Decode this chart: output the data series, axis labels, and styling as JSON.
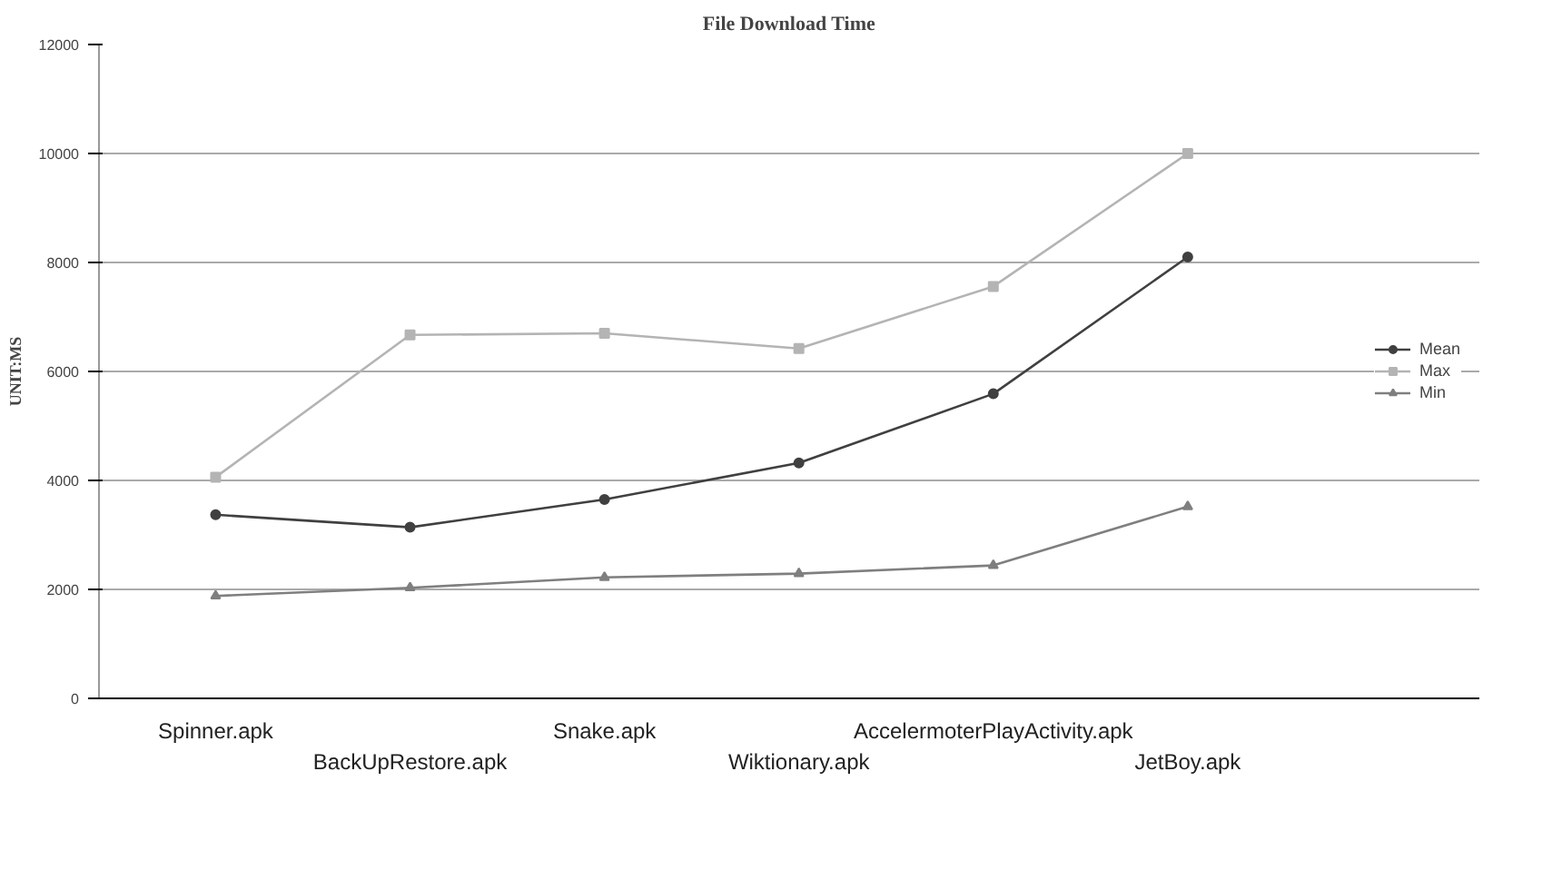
{
  "chart_data": {
    "type": "line",
    "title": "File Download Time",
    "ylabel": "UNIT:MS",
    "categories": [
      "Spinner.apk",
      "BackUpRestore.apk",
      "Snake.apk",
      "Wiktionary.apk",
      "AccelermoterPlayActivity.apk",
      "JetBoy.apk"
    ],
    "series": [
      {
        "name": "Mean",
        "color": "#404040",
        "marker": "circle",
        "values": [
          3370,
          3140,
          3650,
          4320,
          5590,
          8100
        ]
      },
      {
        "name": "Max",
        "color": "#b4b4b4",
        "marker": "square",
        "values": [
          4060,
          6670,
          6700,
          6420,
          7560,
          10000
        ]
      },
      {
        "name": "Min",
        "color": "#7f7f7f",
        "marker": "triangle",
        "values": [
          1880,
          2030,
          2220,
          2290,
          2440,
          3520
        ]
      }
    ],
    "ylim": [
      0,
      12000
    ],
    "yticks": [
      0,
      2000,
      4000,
      6000,
      8000,
      10000,
      12000
    ],
    "grid": "y",
    "legend": "right"
  }
}
